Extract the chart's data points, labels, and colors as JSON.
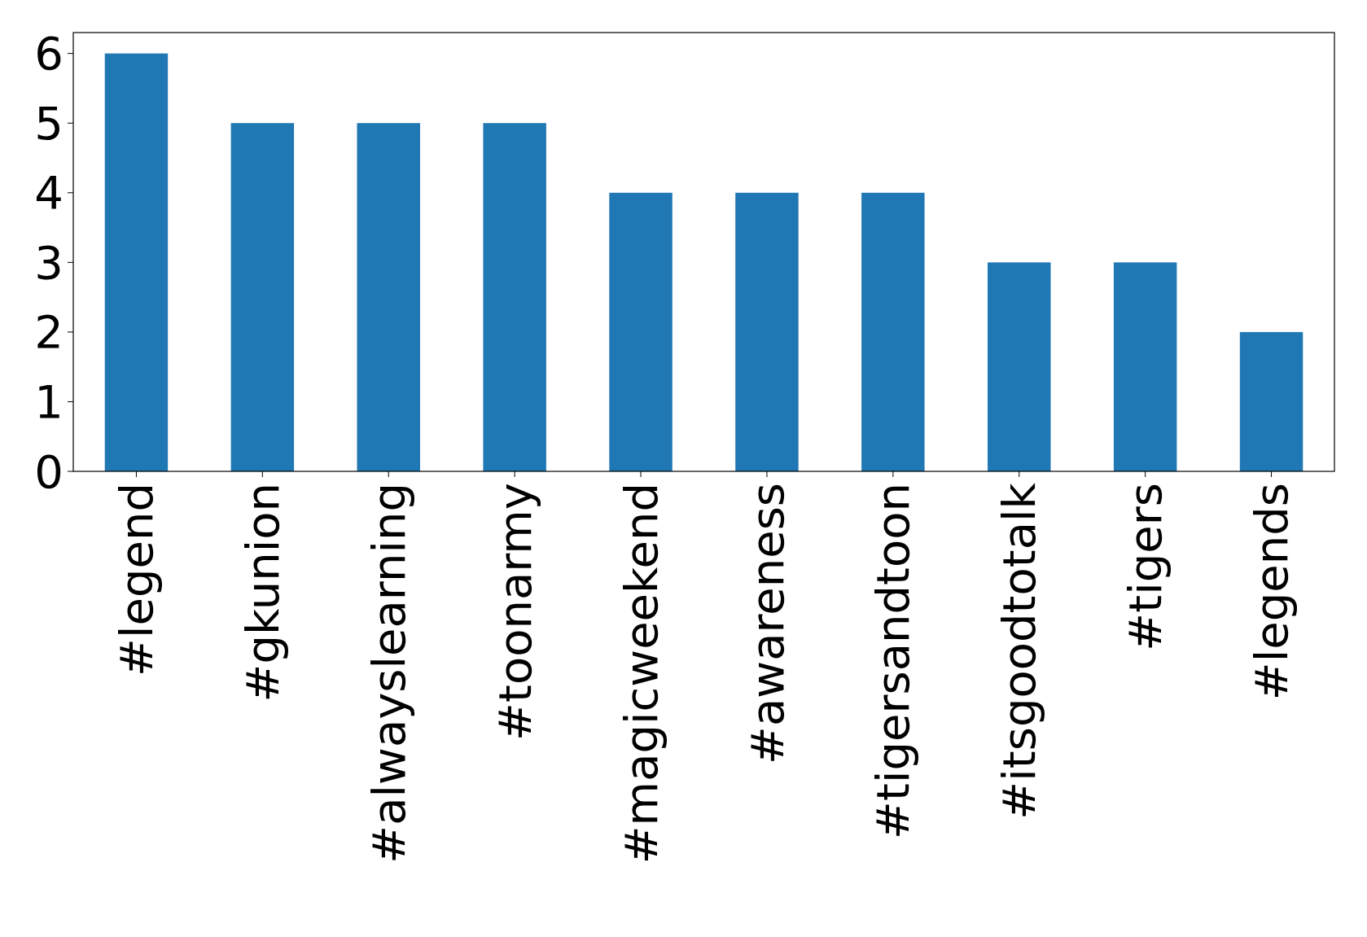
{
  "chart_data": {
    "type": "bar",
    "categories": [
      "#legend",
      "#gkunion",
      "#alwayslearning",
      "#toonarmy",
      "#magicweekend",
      "#awareness",
      "#tigersandtoon",
      "#itsgoodtotalk",
      "#tigers",
      "#legends"
    ],
    "values": [
      6,
      5,
      5,
      5,
      4,
      4,
      4,
      3,
      3,
      2
    ],
    "color": "#1f77b4",
    "ylim": [
      0,
      6.3
    ],
    "yticks": [
      0,
      1,
      2,
      3,
      4,
      5,
      6
    ],
    "grid": false
  }
}
